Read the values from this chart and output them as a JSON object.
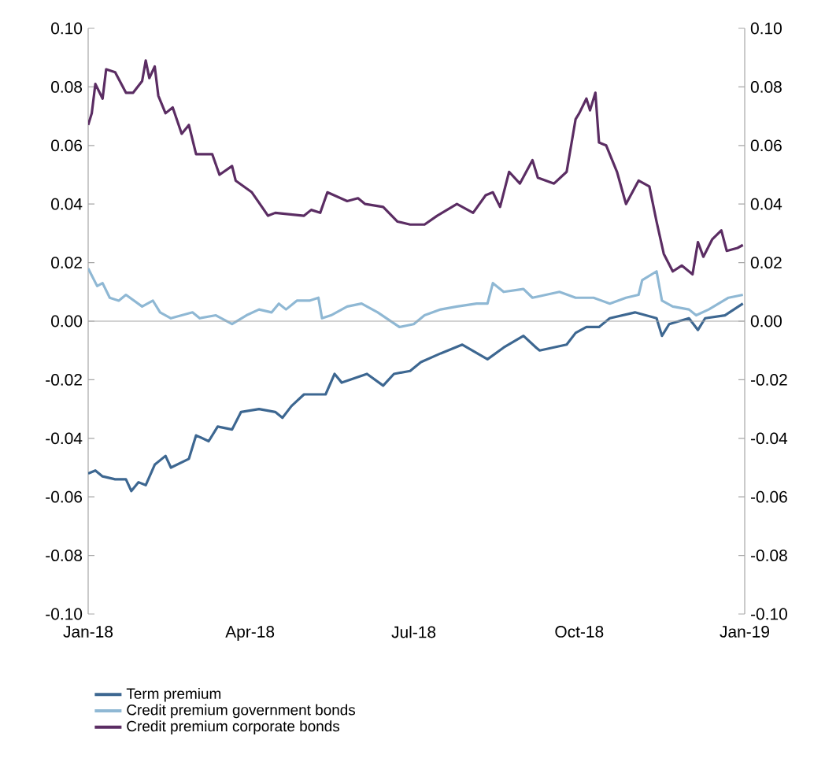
{
  "chart_data": {
    "type": "line",
    "xlim": [
      "2018-01-01",
      "2019-01-01"
    ],
    "xticks": [
      {
        "value": "2018-01-01",
        "label": "Jan-18"
      },
      {
        "value": "2018-04-01",
        "label": "Apr-18"
      },
      {
        "value": "2018-07-01",
        "label": "Jul-18"
      },
      {
        "value": "2018-10-01",
        "label": "Oct-18"
      },
      {
        "value": "2019-01-01",
        "label": "Jan-19"
      }
    ],
    "ylim": [
      -0.1,
      0.1
    ],
    "yticks": [
      {
        "value": -0.1,
        "label": "-0.10"
      },
      {
        "value": -0.08,
        "label": "-0.08"
      },
      {
        "value": -0.06,
        "label": "-0.06"
      },
      {
        "value": -0.04,
        "label": "-0.04"
      },
      {
        "value": -0.02,
        "label": "-0.02"
      },
      {
        "value": 0,
        "label": "0.00"
      },
      {
        "value": 0.02,
        "label": "0.02"
      },
      {
        "value": 0.04,
        "label": "0.04"
      },
      {
        "value": 0.06,
        "label": "0.06"
      },
      {
        "value": 0.08,
        "label": "0.08"
      },
      {
        "value": 0.1,
        "label": "0.10"
      }
    ],
    "y2lim": [
      -0.1,
      0.1
    ],
    "y2ticks": [
      {
        "value": -0.1,
        "label": "-0.10"
      },
      {
        "value": -0.08,
        "label": "-0.08"
      },
      {
        "value": -0.06,
        "label": "-0.06"
      },
      {
        "value": -0.04,
        "label": "-0.04"
      },
      {
        "value": -0.02,
        "label": "-0.02"
      },
      {
        "value": 0,
        "label": "0.00"
      },
      {
        "value": 0.02,
        "label": "0.02"
      },
      {
        "value": 0.04,
        "label": "0.04"
      },
      {
        "value": 0.06,
        "label": "0.06"
      },
      {
        "value": 0.08,
        "label": "0.08"
      },
      {
        "value": 0.1,
        "label": "0.10"
      }
    ],
    "ref_lines": [
      {
        "axis": "y",
        "value": 0,
        "color": "#a6a6a6"
      }
    ],
    "legend": "bottom",
    "grid": false,
    "marker": "none",
    "line_style": "solid",
    "series": [
      {
        "name": "Term premium",
        "color": "#3d6791",
        "x": [
          "2018-01-01",
          "2018-01-05",
          "2018-01-09",
          "2018-01-16",
          "2018-01-22",
          "2018-01-25",
          "2018-01-29",
          "2018-02-02",
          "2018-02-07",
          "2018-02-13",
          "2018-02-16",
          "2018-02-26",
          "2018-03-02",
          "2018-03-09",
          "2018-03-14",
          "2018-03-22",
          "2018-03-27",
          "2018-04-06",
          "2018-04-15",
          "2018-04-19",
          "2018-04-24",
          "2018-05-01",
          "2018-05-13",
          "2018-05-18",
          "2018-05-22",
          "2018-06-05",
          "2018-06-14",
          "2018-06-20",
          "2018-06-29",
          "2018-07-05",
          "2018-07-16",
          "2018-07-28",
          "2018-08-11",
          "2018-08-20",
          "2018-08-31",
          "2018-09-07",
          "2018-09-09",
          "2018-09-24",
          "2018-09-29",
          "2018-10-05",
          "2018-10-12",
          "2018-10-18",
          "2018-11-01",
          "2018-11-13",
          "2018-11-16",
          "2018-11-20",
          "2018-12-01",
          "2018-12-06",
          "2018-12-10",
          "2018-12-21",
          "2018-12-31"
        ],
        "values": [
          -0.052,
          -0.051,
          -0.053,
          -0.054,
          -0.054,
          -0.058,
          -0.055,
          -0.056,
          -0.049,
          -0.046,
          -0.05,
          -0.047,
          -0.039,
          -0.041,
          -0.036,
          -0.037,
          -0.031,
          -0.03,
          -0.031,
          -0.033,
          -0.029,
          -0.025,
          -0.025,
          -0.018,
          -0.021,
          -0.018,
          -0.022,
          -0.018,
          -0.017,
          -0.014,
          -0.011,
          -0.008,
          -0.013,
          -0.009,
          -0.005,
          -0.009,
          -0.01,
          -0.008,
          -0.004,
          -0.002,
          -0.002,
          0.001,
          0.003,
          0.001,
          -0.005,
          -0.001,
          0.001,
          -0.003,
          0.001,
          0.002,
          0.006
        ]
      },
      {
        "name": "Credit premium government bonds",
        "color": "#8fb8d4",
        "x": [
          "2018-01-01",
          "2018-01-06",
          "2018-01-09",
          "2018-01-13",
          "2018-01-18",
          "2018-01-22",
          "2018-01-31",
          "2018-02-06",
          "2018-02-10",
          "2018-02-16",
          "2018-02-28",
          "2018-03-04",
          "2018-03-13",
          "2018-03-22",
          "2018-03-30",
          "2018-04-06",
          "2018-04-13",
          "2018-04-17",
          "2018-04-21",
          "2018-04-27",
          "2018-05-04",
          "2018-05-09",
          "2018-05-11",
          "2018-05-16",
          "2018-05-25",
          "2018-06-02",
          "2018-06-11",
          "2018-06-23",
          "2018-07-01",
          "2018-07-07",
          "2018-07-16",
          "2018-07-25",
          "2018-08-05",
          "2018-08-11",
          "2018-08-14",
          "2018-08-20",
          "2018-08-31",
          "2018-09-05",
          "2018-09-20",
          "2018-09-29",
          "2018-10-09",
          "2018-10-18",
          "2018-10-27",
          "2018-11-03",
          "2018-11-05",
          "2018-11-13",
          "2018-11-16",
          "2018-11-22",
          "2018-12-01",
          "2018-12-05",
          "2018-12-12",
          "2018-12-23",
          "2018-12-31"
        ],
        "values": [
          0.018,
          0.012,
          0.013,
          0.008,
          0.007,
          0.009,
          0.005,
          0.007,
          0.003,
          0.001,
          0.003,
          0.001,
          0.002,
          -0.001,
          0.002,
          0.004,
          0.003,
          0.006,
          0.004,
          0.007,
          0.007,
          0.008,
          0.001,
          0.002,
          0.005,
          0.006,
          0.003,
          -0.002,
          -0.001,
          0.002,
          0.004,
          0.005,
          0.006,
          0.006,
          0.013,
          0.01,
          0.011,
          0.008,
          0.01,
          0.008,
          0.008,
          0.006,
          0.008,
          0.009,
          0.014,
          0.017,
          0.007,
          0.005,
          0.004,
          0.002,
          0.004,
          0.008,
          0.009
        ]
      },
      {
        "name": "Credit premium corporate bonds",
        "color": "#5b2d63",
        "x": [
          "2018-01-01",
          "2018-01-03",
          "2018-01-05",
          "2018-01-09",
          "2018-01-11",
          "2018-01-16",
          "2018-01-22",
          "2018-01-26",
          "2018-01-31",
          "2018-02-02",
          "2018-02-04",
          "2018-02-07",
          "2018-02-09",
          "2018-02-13",
          "2018-02-17",
          "2018-02-22",
          "2018-02-26",
          "2018-03-02",
          "2018-03-11",
          "2018-03-15",
          "2018-03-22",
          "2018-03-24",
          "2018-04-02",
          "2018-04-11",
          "2018-04-15",
          "2018-05-01",
          "2018-05-05",
          "2018-05-10",
          "2018-05-14",
          "2018-05-25",
          "2018-05-31",
          "2018-06-04",
          "2018-06-14",
          "2018-06-22",
          "2018-06-29",
          "2018-07-07",
          "2018-07-14",
          "2018-07-25",
          "2018-08-03",
          "2018-08-10",
          "2018-08-14",
          "2018-08-18",
          "2018-08-23",
          "2018-08-29",
          "2018-09-05",
          "2018-09-08",
          "2018-09-17",
          "2018-09-24",
          "2018-09-29",
          "2018-10-01",
          "2018-10-05",
          "2018-10-07",
          "2018-10-10",
          "2018-10-12",
          "2018-10-16",
          "2018-10-22",
          "2018-10-27",
          "2018-11-03",
          "2018-11-09",
          "2018-11-13",
          "2018-11-17",
          "2018-11-22",
          "2018-11-27",
          "2018-12-03",
          "2018-12-06",
          "2018-12-09",
          "2018-12-14",
          "2018-12-19",
          "2018-12-22",
          "2018-12-28",
          "2018-12-31"
        ],
        "values": [
          0.067,
          0.071,
          0.081,
          0.076,
          0.086,
          0.085,
          0.078,
          0.078,
          0.082,
          0.089,
          0.083,
          0.087,
          0.077,
          0.071,
          0.073,
          0.064,
          0.067,
          0.057,
          0.057,
          0.05,
          0.053,
          0.048,
          0.044,
          0.036,
          0.037,
          0.036,
          0.038,
          0.037,
          0.044,
          0.041,
          0.042,
          0.04,
          0.039,
          0.034,
          0.033,
          0.033,
          0.036,
          0.04,
          0.037,
          0.043,
          0.044,
          0.039,
          0.051,
          0.047,
          0.055,
          0.049,
          0.047,
          0.051,
          0.069,
          0.071,
          0.076,
          0.072,
          0.078,
          0.061,
          0.06,
          0.051,
          0.04,
          0.048,
          0.046,
          0.034,
          0.023,
          0.017,
          0.019,
          0.016,
          0.027,
          0.022,
          0.028,
          0.031,
          0.024,
          0.025,
          0.026
        ]
      }
    ]
  }
}
